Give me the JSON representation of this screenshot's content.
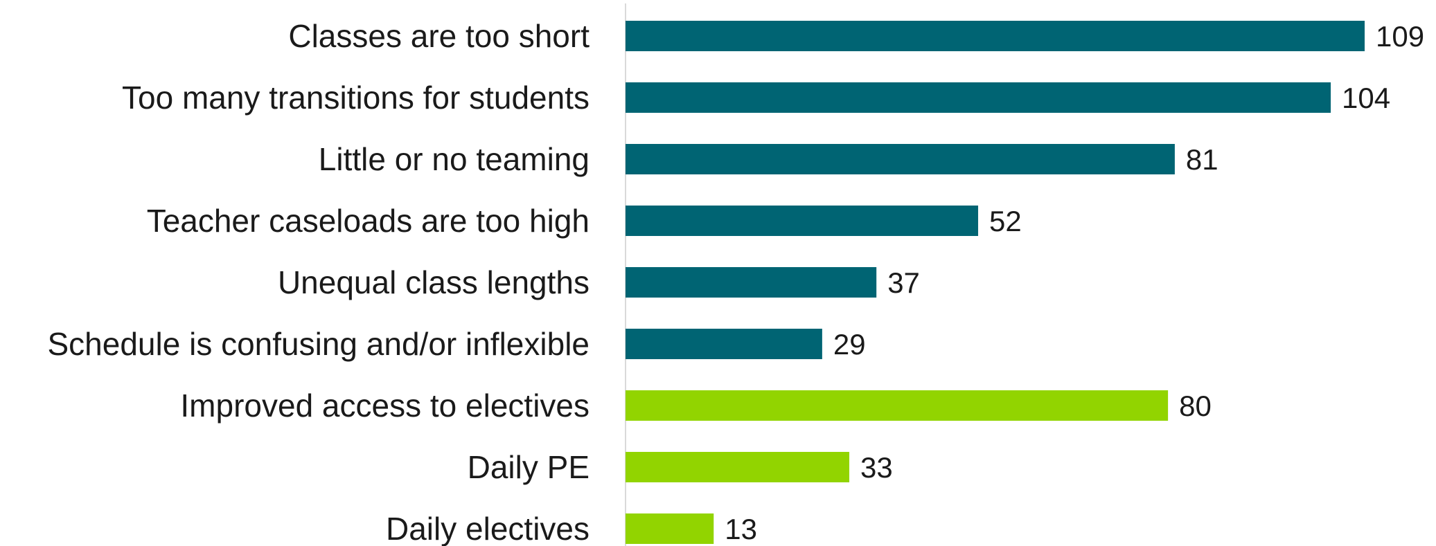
{
  "chart_data": {
    "type": "bar",
    "orientation": "horizontal",
    "title": "",
    "xlabel": "",
    "ylabel": "",
    "categories": [
      "Classes are too short",
      "Too many transitions for students",
      "Little or no teaming",
      "Teacher caseloads are too high",
      "Unequal class lengths",
      "Schedule is confusing and/or inflexible",
      "Improved access to electives",
      "Daily PE",
      "Daily electives"
    ],
    "values": [
      109,
      104,
      81,
      52,
      37,
      29,
      80,
      33,
      13
    ],
    "bar_colors": [
      "#006473",
      "#006473",
      "#006473",
      "#006473",
      "#006473",
      "#006473",
      "#92d400",
      "#92d400",
      "#92d400"
    ],
    "xlim": [
      0,
      109
    ],
    "grid": false,
    "legend": "none",
    "data_labels": true
  },
  "colors": {
    "dark_teal": "#006473",
    "lime_green": "#92d400",
    "axis_line": "#d9d9d9",
    "text": "#1a1a1a"
  }
}
